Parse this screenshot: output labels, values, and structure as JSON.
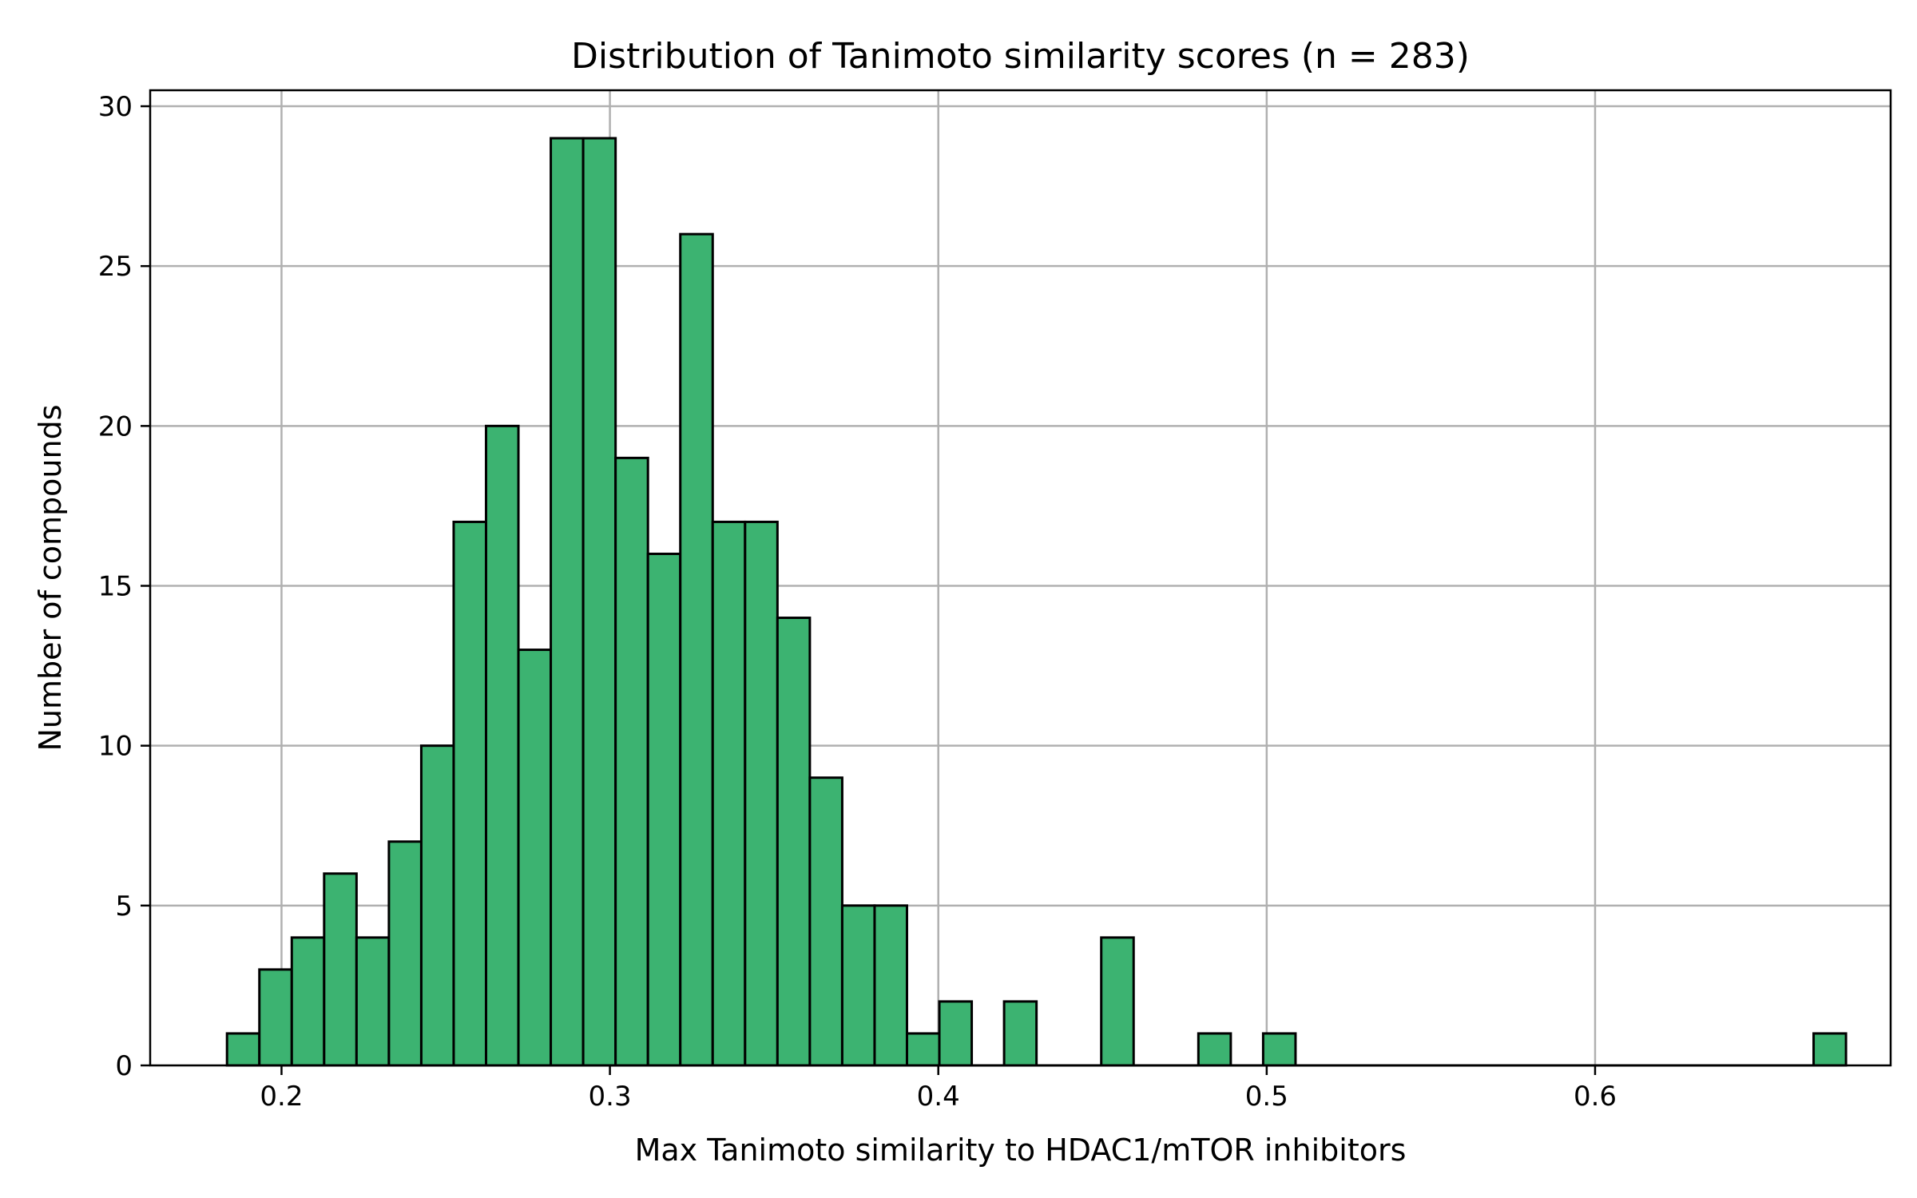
{
  "chart_data": {
    "type": "bar",
    "title": "Distribution of Tanimoto similarity scores (n = 283)",
    "xlabel": "Max Tanimoto similarity to HDAC1/mTOR inhibitors",
    "ylabel": "Number of compounds",
    "xlim": [
      0.16,
      0.69
    ],
    "ylim": [
      0,
      30.5
    ],
    "xticks": [
      0.2,
      0.3,
      0.4,
      0.5,
      0.6
    ],
    "xtick_labels": [
      "0.2",
      "0.3",
      "0.4",
      "0.5",
      "0.6"
    ],
    "yticks": [
      0,
      5,
      10,
      15,
      20,
      25,
      30
    ],
    "ytick_labels": [
      "0",
      "5",
      "10",
      "15",
      "20",
      "25",
      "30"
    ],
    "grid": true,
    "bar_color": "#3cb371",
    "edge_color": "#000000",
    "bins": {
      "start": 0.1834,
      "width": 0.00986,
      "counts": [
        1,
        3,
        4,
        6,
        4,
        7,
        10,
        17,
        20,
        13,
        29,
        29,
        19,
        16,
        26,
        17,
        17,
        14,
        9,
        5,
        5,
        1,
        2,
        0,
        2,
        0,
        0,
        4,
        0,
        0,
        1,
        0,
        1,
        0,
        0,
        0,
        0,
        0,
        0,
        0,
        0,
        0,
        0,
        0,
        0,
        0,
        0,
        0,
        0,
        1
      ]
    }
  }
}
